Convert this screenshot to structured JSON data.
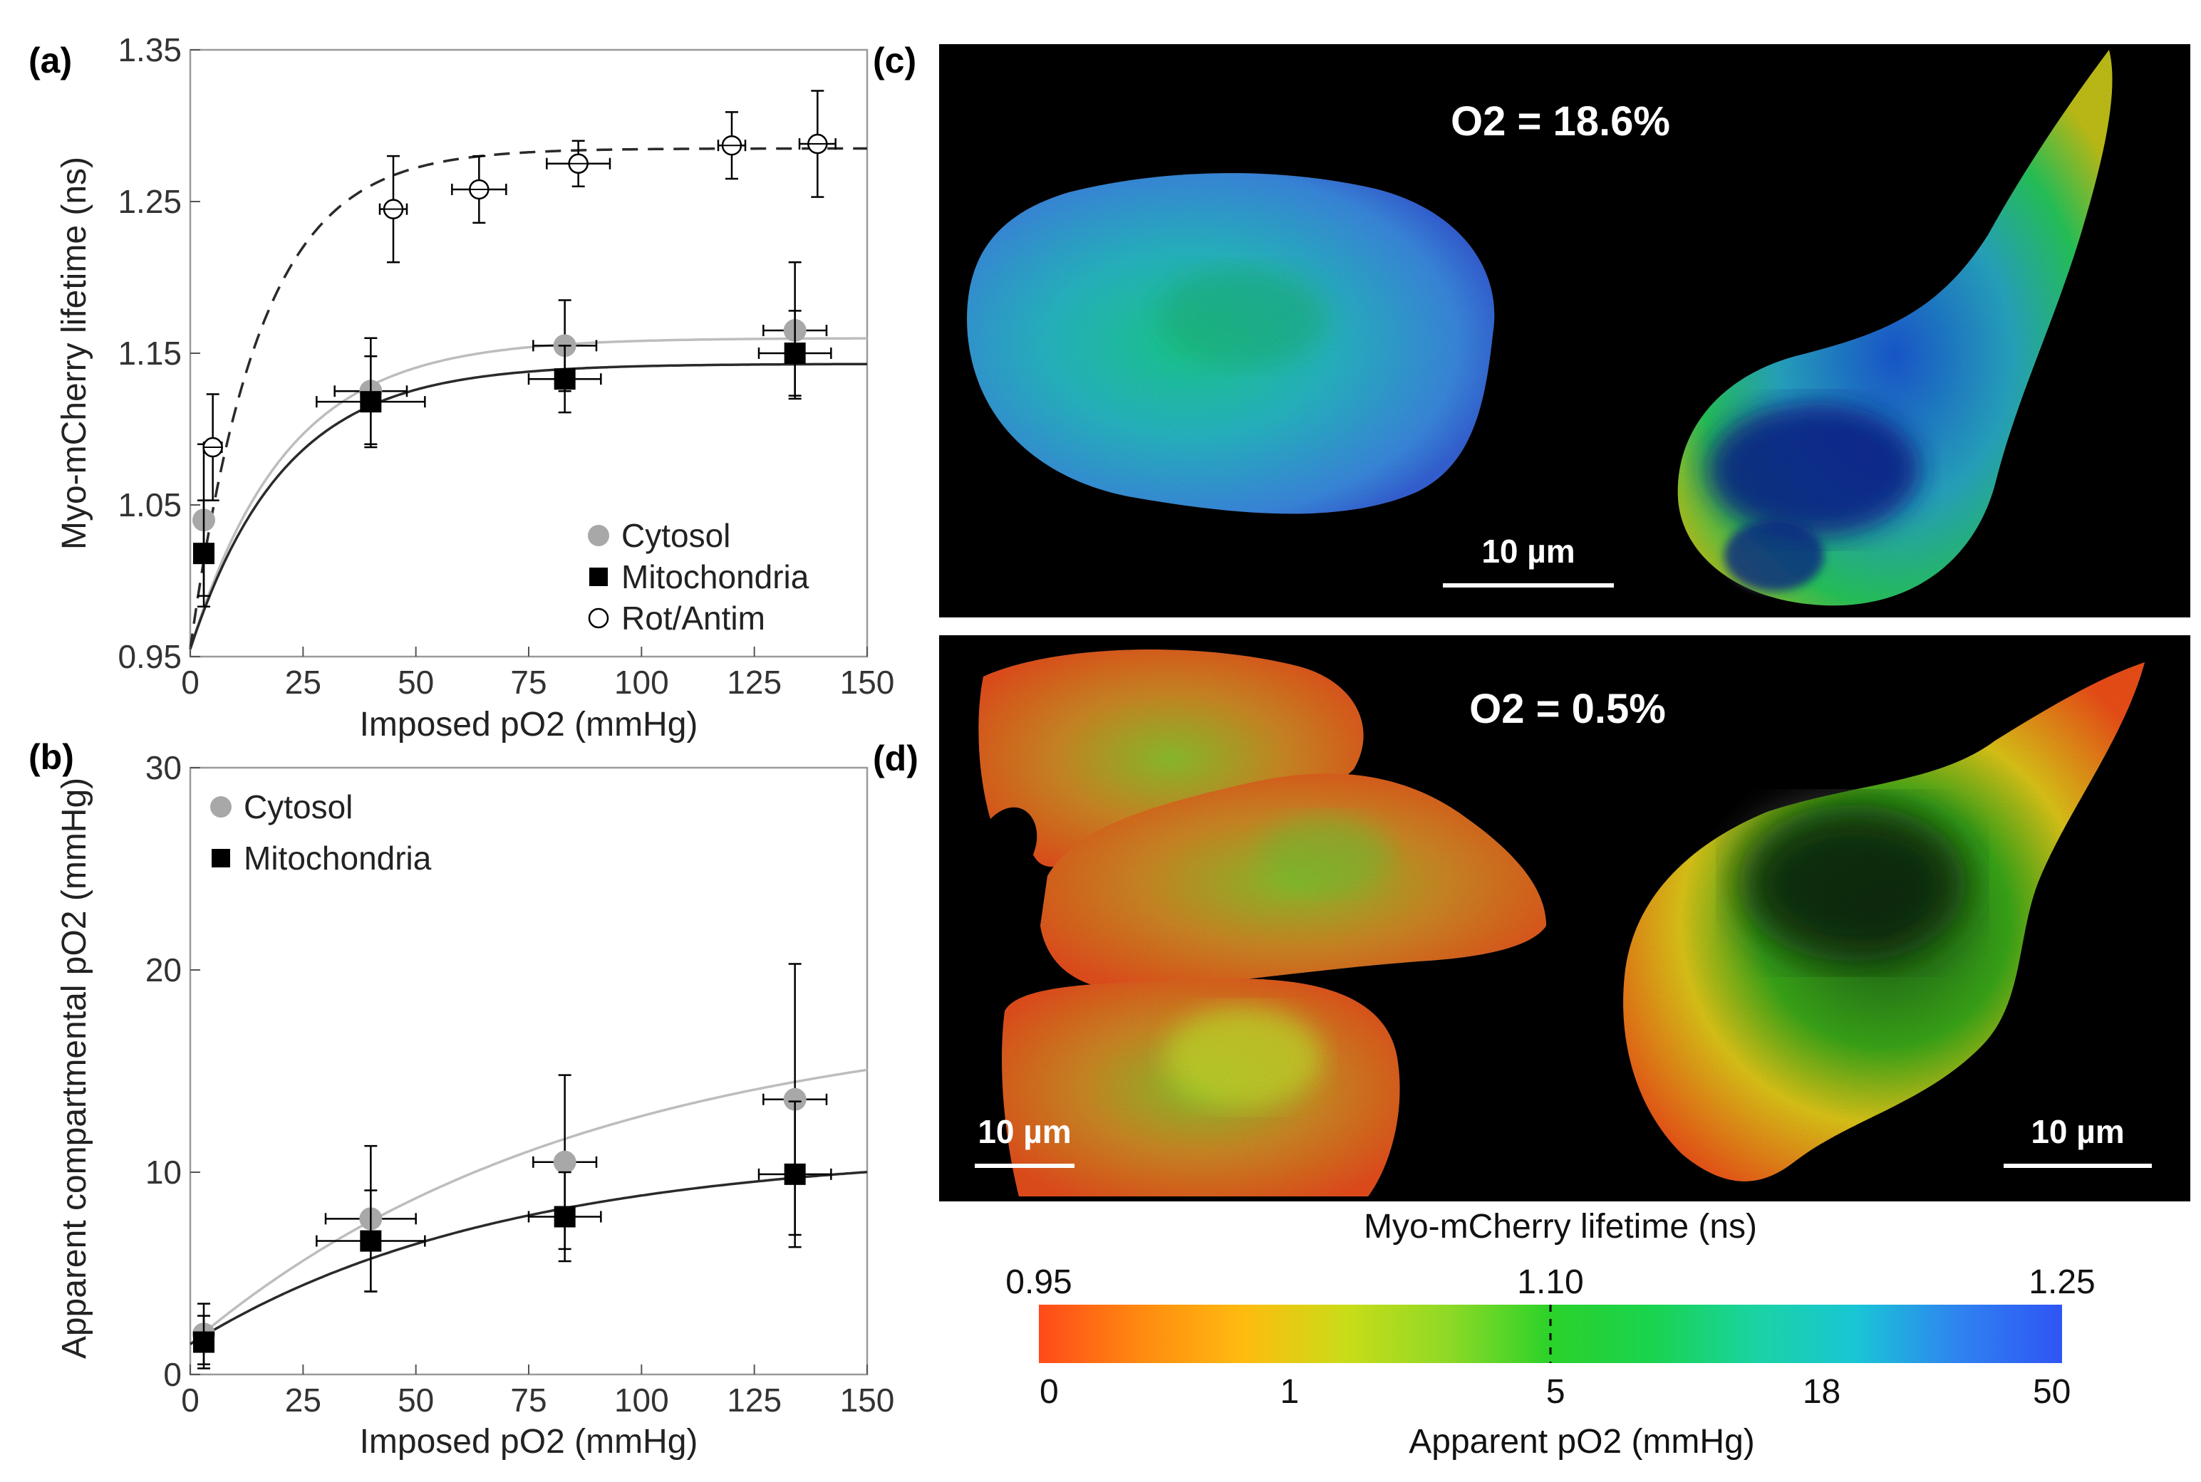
{
  "panels": {
    "a": {
      "label": "(a)",
      "chart_data": {
        "type": "scatter",
        "xlabel": "Imposed pO2 (mmHg)",
        "ylabel": "Myo-mCherry lifetime (ns)",
        "xlim": [
          0,
          150
        ],
        "ylim": [
          0.95,
          1.35
        ],
        "xticks": [
          "0",
          "25",
          "50",
          "75",
          "100",
          "125",
          "150"
        ],
        "yticks": [
          "0.95",
          "1.05",
          "1.15",
          "1.25",
          "1.35"
        ],
        "legend": "bottom-right",
        "series": [
          {
            "name": "Cytosol",
            "marker": "circle-filled",
            "color": "#a8a8a8",
            "fit": "solid",
            "fit_color": "#bdbdbd",
            "fit_params": {
              "y0": 0.955,
              "A": 0.205,
              "k": 0.047
            },
            "points": [
              {
                "x": 3,
                "y": 1.04,
                "yerr": 0.05,
                "xerr": 1
              },
              {
                "x": 40,
                "y": 1.125,
                "yerr": 0.035,
                "xerr": 8
              },
              {
                "x": 83,
                "y": 1.155,
                "yerr": 0.03,
                "xerr": 7
              },
              {
                "x": 134,
                "y": 1.165,
                "yerr": 0.045,
                "xerr": 7
              }
            ]
          },
          {
            "name": "Mitochondria",
            "marker": "square-filled",
            "color": "#000000",
            "fit": "solid",
            "fit_color": "#2a2a2a",
            "fit_params": {
              "y0": 0.955,
              "A": 0.188,
              "k": 0.048
            },
            "points": [
              {
                "x": 3,
                "y": 1.018,
                "yerr": 0.035,
                "xerr": 1
              },
              {
                "x": 40,
                "y": 1.118,
                "yerr": 0.03,
                "xerr": 12
              },
              {
                "x": 83,
                "y": 1.133,
                "yerr": 0.022,
                "xerr": 8
              },
              {
                "x": 134,
                "y": 1.15,
                "yerr": 0.028,
                "xerr": 8
              }
            ]
          },
          {
            "name": "Rot/Antim",
            "marker": "circle-open-crosshair",
            "color": "#000000",
            "fit": "dashed",
            "fit_color": "#2a2a2a",
            "fit_params": {
              "y0": 0.955,
              "A": 0.33,
              "k": 0.065
            },
            "points": [
              {
                "x": 5,
                "y": 1.088,
                "yerr": 0.035,
                "xerr": 2
              },
              {
                "x": 45,
                "y": 1.245,
                "yerr": 0.035,
                "xerr": 3
              },
              {
                "x": 64,
                "y": 1.258,
                "yerr": 0.022,
                "xerr": 6
              },
              {
                "x": 86,
                "y": 1.275,
                "yerr": 0.015,
                "xerr": 7
              },
              {
                "x": 120,
                "y": 1.287,
                "yerr": 0.022,
                "xerr": 3
              },
              {
                "x": 139,
                "y": 1.288,
                "yerr": 0.035,
                "xerr": 4
              }
            ]
          }
        ]
      }
    },
    "b": {
      "label": "(b)",
      "chart_data": {
        "type": "scatter",
        "xlabel": "Imposed pO2 (mmHg)",
        "ylabel": "Apparent compartmental pO2 (mmHg)",
        "xlim": [
          0,
          150
        ],
        "ylim": [
          0,
          30
        ],
        "xticks": [
          "0",
          "25",
          "50",
          "75",
          "100",
          "125",
          "150"
        ],
        "yticks": [
          "0",
          "10",
          "20",
          "30"
        ],
        "legend": "top-left",
        "series": [
          {
            "name": "Cytosol",
            "marker": "circle-filled",
            "color": "#a8a8a8",
            "fit": "solid",
            "fit_color": "#bdbdbd",
            "fit_params": {
              "y0": 1.5,
              "A": 16.5,
              "k": 0.0115
            },
            "points": [
              {
                "x": 3,
                "y": 2.0,
                "yerr": 1.5,
                "xerr": 1
              },
              {
                "x": 40,
                "y": 7.7,
                "yerr": 3.6,
                "xerr": 10
              },
              {
                "x": 83,
                "y": 10.5,
                "yerr": 4.3,
                "xerr": 7
              },
              {
                "x": 134,
                "y": 13.6,
                "yerr": 6.7,
                "xerr": 7
              }
            ]
          },
          {
            "name": "Mitochondria",
            "marker": "square-filled",
            "color": "#000000",
            "fit": "solid",
            "fit_color": "#2a2a2a",
            "fit_params": {
              "y0": 1.5,
              "A": 9.6,
              "k": 0.0145
            },
            "points": [
              {
                "x": 3,
                "y": 1.6,
                "yerr": 1.3,
                "xerr": 1
              },
              {
                "x": 40,
                "y": 6.6,
                "yerr": 2.5,
                "xerr": 12
              },
              {
                "x": 83,
                "y": 7.8,
                "yerr": 2.2,
                "xerr": 8
              },
              {
                "x": 134,
                "y": 9.9,
                "yerr": 3.6,
                "xerr": 8
              }
            ]
          }
        ]
      }
    },
    "c": {
      "label": "(c)",
      "title": "O2 = 18.6%",
      "scalebar": "10 µm"
    },
    "d": {
      "label": "(d)",
      "title": "O2 = 0.5%",
      "scalebar_left": "10 µm",
      "scalebar_right": "10 µm"
    }
  },
  "colorbar": {
    "title": "Myo-mCherry lifetime (ns)",
    "top_ticks": [
      "0.95",
      "1.10",
      "1.25"
    ],
    "bottom_ticks": [
      "0",
      "1",
      "5",
      "18",
      "50"
    ],
    "bottom_label": "Apparent pO2 (mmHg)",
    "colors": [
      "#ff4a1a",
      "#ff8a10",
      "#ffbb10",
      "#c9dc18",
      "#8fd926",
      "#2bd22a",
      "#19d34f",
      "#1ad3a2",
      "#19c5d6",
      "#2f82f0",
      "#2f55f4"
    ]
  }
}
